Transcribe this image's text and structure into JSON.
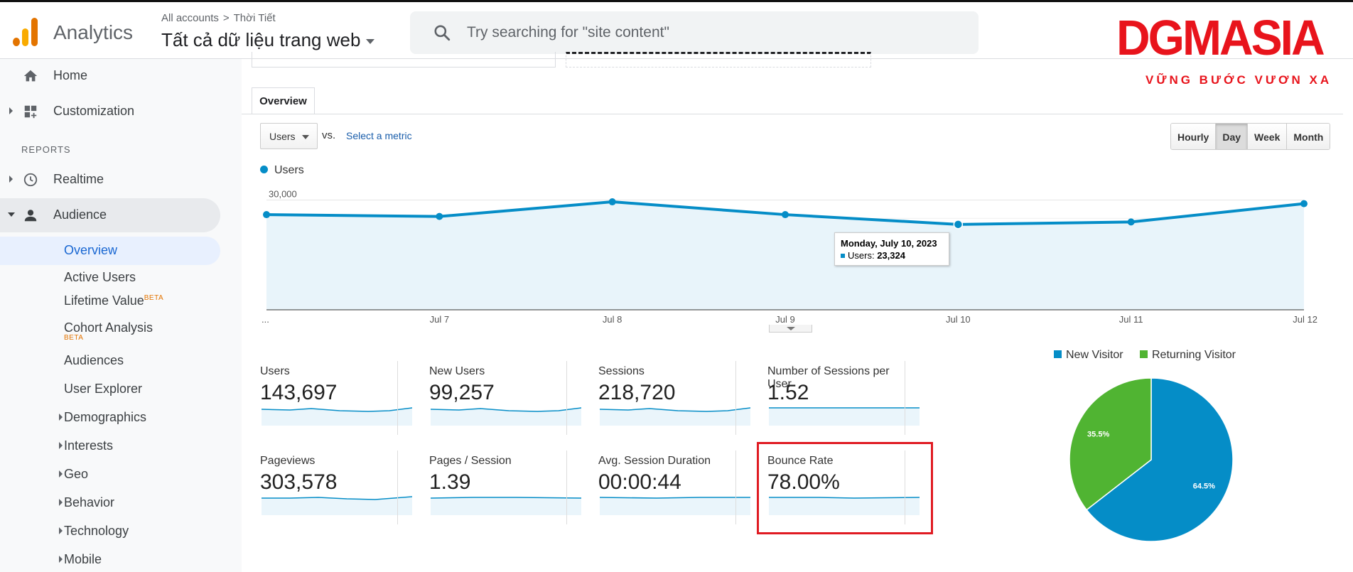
{
  "header": {
    "app_name": "Analytics",
    "breadcrumb_root": "All accounts",
    "breadcrumb_sep": ">",
    "breadcrumb_account": "Thời Tiết",
    "property_name": "Tất cả dữ liệu trang web",
    "search_placeholder": "Try searching for \"site content\"",
    "brand_name": "DGMASIA",
    "brand_tagline": "VỮNG BƯỚC VƯƠN XA"
  },
  "colors": {
    "line": "#058dc7",
    "new_visitor": "#058dc7",
    "returning_visitor": "#50b432",
    "highlight": "#e01b22"
  },
  "sidebar": {
    "home": "Home",
    "customization": "Customization",
    "reports_heading": "REPORTS",
    "realtime": "Realtime",
    "audience": "Audience",
    "subitems": {
      "overview": "Overview",
      "active_users": "Active Users",
      "lifetime_value": "Lifetime Value",
      "cohort_analysis": "Cohort Analysis",
      "beta": "BETA",
      "audiences": "Audiences",
      "user_explorer": "User Explorer",
      "demographics": "Demographics",
      "interests": "Interests",
      "geo": "Geo",
      "behavior": "Behavior",
      "technology": "Technology",
      "mobile": "Mobile"
    }
  },
  "overview_tab": "Overview",
  "chart_controls": {
    "metric": "Users",
    "vs": "vs.",
    "select_metric": "Select a metric",
    "granularity": [
      "Hourly",
      "Day",
      "Week",
      "Month"
    ],
    "selected_granularity": "Day"
  },
  "tooltip": {
    "date": "Monday, July 10, 2023",
    "label": "Users:",
    "value": "23,324"
  },
  "metrics": [
    {
      "title": "Users",
      "value": "143,697"
    },
    {
      "title": "New Users",
      "value": "99,257"
    },
    {
      "title": "Sessions",
      "value": "218,720"
    },
    {
      "title": "Number of Sessions per User",
      "value": "1.52"
    },
    {
      "title": "Pageviews",
      "value": "303,578"
    },
    {
      "title": "Pages / Session",
      "value": "1.39"
    },
    {
      "title": "Avg. Session Duration",
      "value": "00:00:44"
    },
    {
      "title": "Bounce Rate",
      "value": "78.00%"
    }
  ],
  "chart_data": [
    {
      "type": "line",
      "series": [
        {
          "name": "Users",
          "values": [
            26000,
            25500,
            29500,
            26000,
            23324,
            24000,
            29000
          ]
        }
      ],
      "categories": [
        "...",
        "Jul 7",
        "Jul 8",
        "Jul 9",
        "Jul 10",
        "Jul 11",
        "Jul 12"
      ],
      "yticks": [
        "10,000",
        "20,000",
        "30,000"
      ],
      "ylim": [
        0,
        33000
      ],
      "grid": true
    },
    {
      "type": "pie",
      "categories": [
        "New Visitor",
        "Returning Visitor"
      ],
      "values": [
        64.5,
        35.5
      ],
      "labels": [
        "64.5%",
        "35.5%"
      ],
      "legend": "top"
    }
  ]
}
